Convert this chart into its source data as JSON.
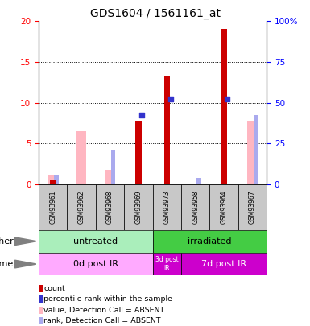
{
  "title": "GDS1604 / 1561161_at",
  "samples": [
    "GSM93961",
    "GSM93962",
    "GSM93968",
    "GSM93969",
    "GSM93973",
    "GSM93958",
    "GSM93964",
    "GSM93967"
  ],
  "count_values": [
    0.5,
    0,
    0,
    7.8,
    13.2,
    0,
    19.0,
    0
  ],
  "absent_value": [
    1.2,
    6.5,
    1.8,
    0,
    0,
    0,
    0,
    7.8
  ],
  "absent_rank_pct": [
    6.0,
    0,
    21.0,
    0,
    0,
    4.0,
    0,
    42.5
  ],
  "percentile_rank_pct": [
    0,
    0,
    0,
    42.5,
    52.5,
    0,
    52.5,
    0
  ],
  "ylim_left": [
    0,
    20
  ],
  "ylim_right": [
    0,
    100
  ],
  "yticks_left": [
    0,
    5,
    10,
    15,
    20
  ],
  "yticks_right": [
    0,
    25,
    50,
    75,
    100
  ],
  "ytick_labels_right": [
    "0",
    "25",
    "50",
    "75",
    "100%"
  ],
  "red_color": "#CC0000",
  "pink_color": "#FFB6C1",
  "blue_color": "#3333CC",
  "light_blue_color": "#AAAAEE",
  "untreated_color": "#AAEEBB",
  "irradiated_color": "#44CC44",
  "time0_color": "#FFAAFF",
  "time3_color": "#CC00CC",
  "time7_color": "#CC00CC"
}
